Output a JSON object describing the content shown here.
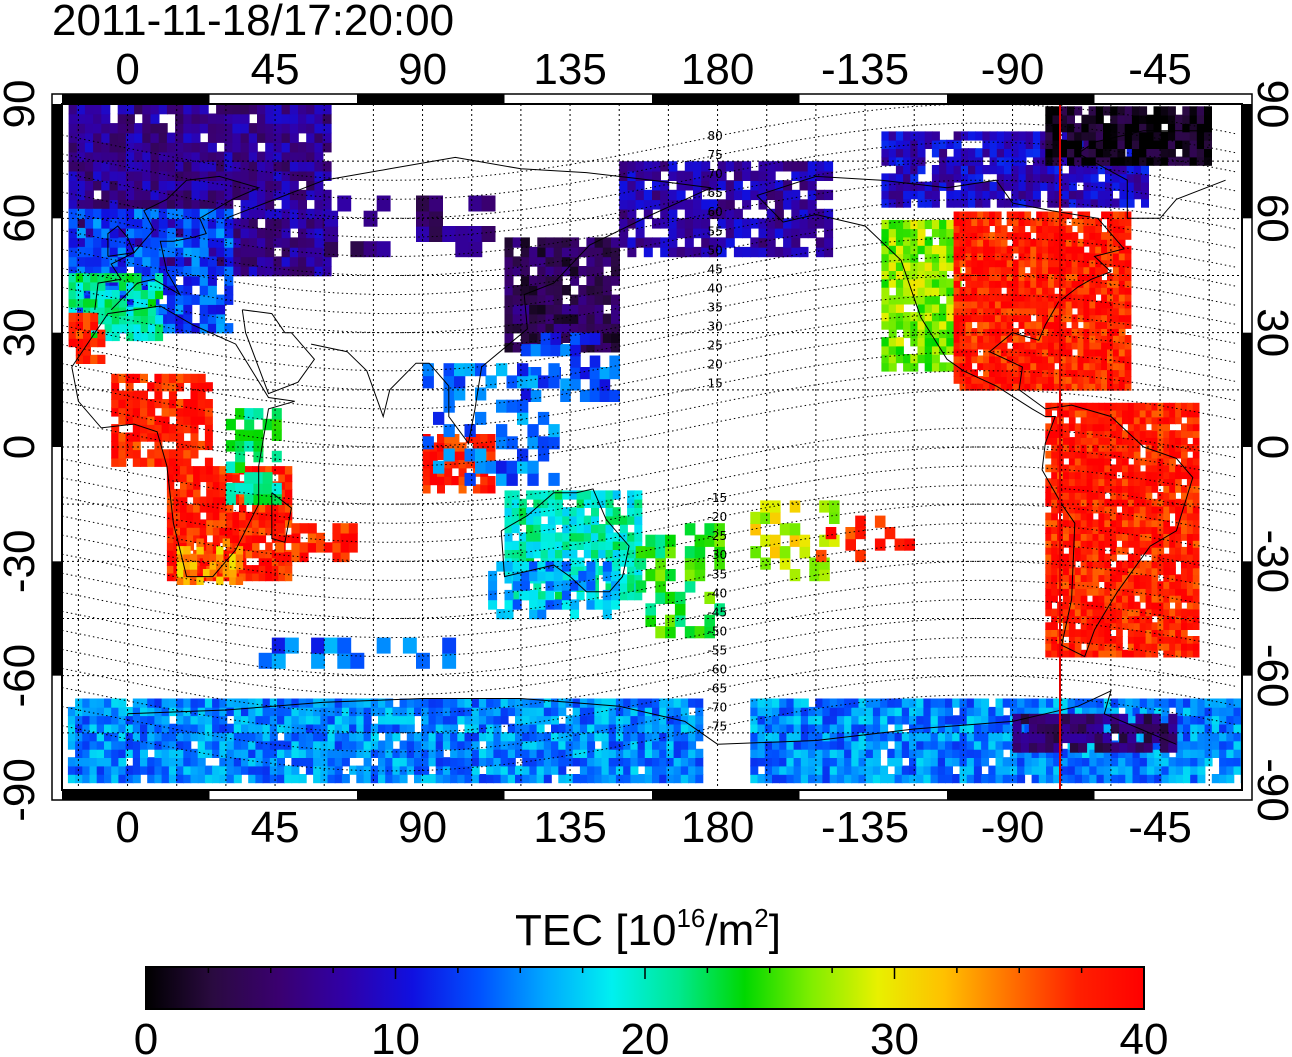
{
  "title": "2011-11-18/17:20:00",
  "map": {
    "top_lon_labels": [
      "0",
      "45",
      "90",
      "135",
      "180",
      "-135",
      "-90",
      "-45"
    ],
    "bottom_lon_labels": [
      "0",
      "45",
      "90",
      "135",
      "180",
      "-135",
      "-90",
      "-45"
    ],
    "left_lat_labels": [
      "90",
      "60",
      "30",
      "0",
      "-30",
      "-60",
      "-90"
    ],
    "right_lat_labels": [
      "90",
      "60",
      "30",
      "0",
      "-30",
      "-60",
      "-90"
    ],
    "magnetic_lat_labels": [
      "80",
      "75",
      "70",
      "65",
      "60",
      "55",
      "50",
      "45",
      "40",
      "35",
      "30",
      "25",
      "20",
      "15",
      "-15",
      "-20",
      "-25",
      "-30",
      "-35",
      "-40",
      "-45",
      "-50",
      "-55",
      "-60",
      "-65",
      "-70",
      "-75"
    ],
    "marker_line_color": "#e00000"
  },
  "colorbar": {
    "title_prefix": "TEC  [10",
    "title_exp": "16",
    "title_mid": "/m",
    "title_exp2": "2",
    "title_suffix": "]",
    "tick_labels": [
      "0",
      "10",
      "20",
      "30",
      "40"
    ],
    "range": [
      0,
      40
    ],
    "colors": [
      "#000000",
      "#2a0a40",
      "#3a0070",
      "#3000a8",
      "#1010e0",
      "#0050ff",
      "#00a8ff",
      "#00f0f0",
      "#00e890",
      "#00d800",
      "#80ee00",
      "#e8f000",
      "#ffc000",
      "#ff7000",
      "#ff2000",
      "#ff0000"
    ]
  }
}
